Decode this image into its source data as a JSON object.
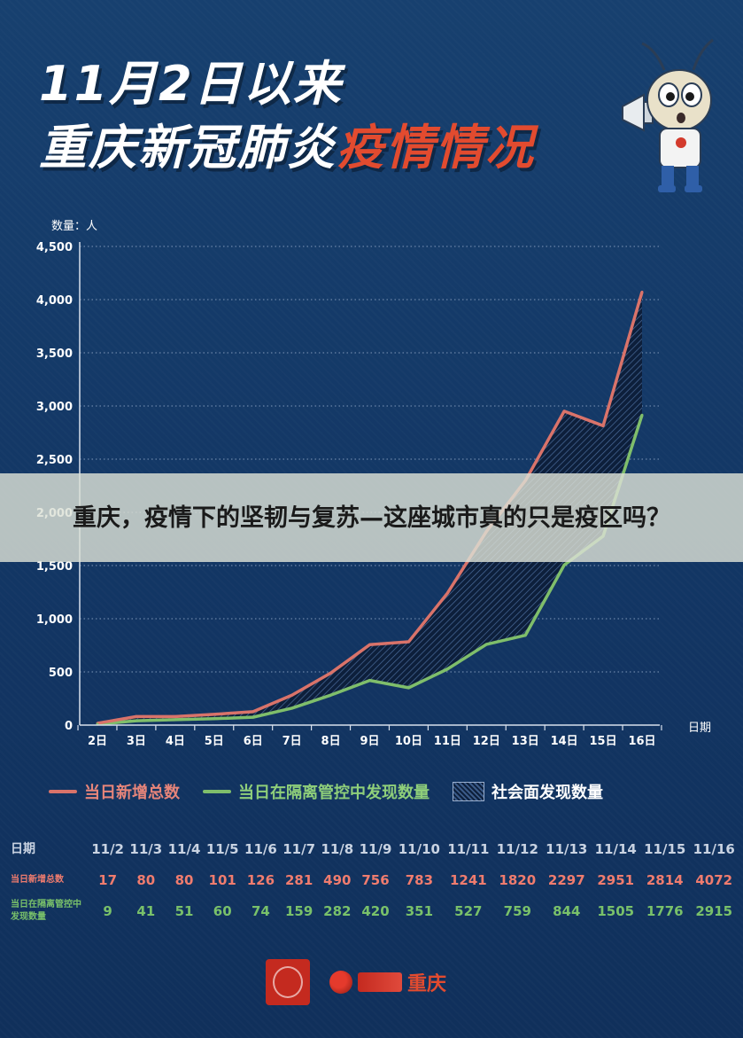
{
  "title_line1": "11月2日以来",
  "title_line2_part1": "重庆新冠肺炎",
  "title_line2_part2": "疫情情况",
  "overlay_text": "重庆，疫情下的坚韧与复苏—这座城市真的只是疫区吗？",
  "y_unit_label": "数量：人",
  "x_unit_label": "日期",
  "legend": {
    "series1": "当日新增总数",
    "series2": "当日在隔离管控中发现数量",
    "hatch": "社会面发现数量"
  },
  "colors": {
    "series1": "#d9736a",
    "series2": "#7fbe6b",
    "background": "#143766",
    "title_accent": "#e24b2f"
  },
  "table": {
    "header_label": "日期",
    "dates": [
      "11/2",
      "11/3",
      "11/4",
      "11/5",
      "11/6",
      "11/7",
      "11/8",
      "11/9",
      "11/10",
      "11/11",
      "11/12",
      "11/13",
      "11/14",
      "11/15",
      "11/16"
    ],
    "row1_label": "当日新增总数",
    "row1_values": [
      "17",
      "80",
      "80",
      "101",
      "126",
      "281",
      "490",
      "756",
      "783",
      "1241",
      "1820",
      "2297",
      "2951",
      "2814",
      "4072"
    ],
    "row2_label": "当日在隔离管控中发现数量",
    "row2_values": [
      "9",
      "41",
      "51",
      "60",
      "74",
      "159",
      "282",
      "420",
      "351",
      "527",
      "759",
      "844",
      "1505",
      "1776",
      "2915"
    ]
  },
  "footer": {
    "brand": "重庆"
  },
  "chart_data": {
    "type": "line",
    "categories": [
      "2日",
      "3日",
      "4日",
      "5日",
      "6日",
      "7日",
      "8日",
      "9日",
      "10日",
      "11日",
      "12日",
      "13日",
      "14日",
      "15日",
      "16日"
    ],
    "series": [
      {
        "name": "当日新增总数",
        "values": [
          17,
          80,
          80,
          101,
          126,
          281,
          490,
          756,
          783,
          1241,
          1820,
          2297,
          2951,
          2814,
          4072
        ]
      },
      {
        "name": "当日在隔离管控中发现数量",
        "values": [
          9,
          41,
          51,
          60,
          74,
          159,
          282,
          420,
          351,
          527,
          759,
          844,
          1505,
          1776,
          2915
        ]
      }
    ],
    "fill_between_label": "社会面发现数量",
    "ylabel": "数量：人",
    "xlabel": "日期",
    "ylim": [
      0,
      4500
    ],
    "yticks": [
      "0",
      "500",
      "1,000",
      "1,500",
      "2,000",
      "2,500",
      "3,000",
      "3,500",
      "4,000",
      "4,500"
    ],
    "grid": true,
    "legend_position": "bottom"
  }
}
